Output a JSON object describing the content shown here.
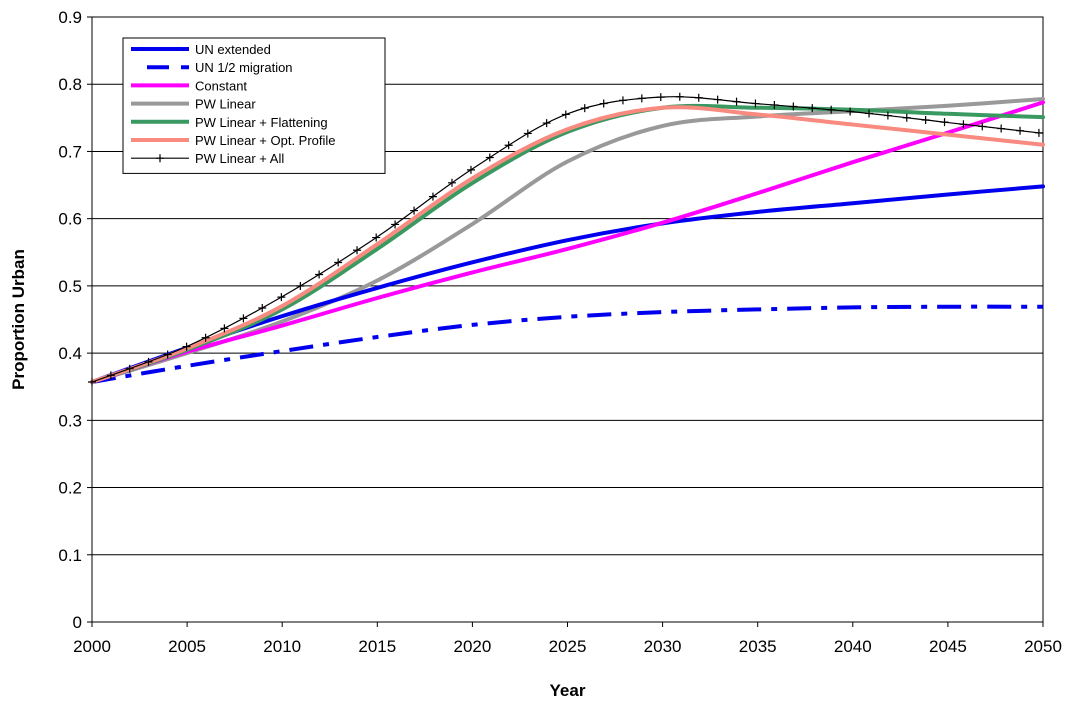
{
  "chart_data": {
    "type": "line",
    "title": "",
    "xlabel": "Year",
    "ylabel": "Proportion Urban",
    "xlim": [
      2000,
      2050
    ],
    "ylim": [
      0,
      0.9
    ],
    "xticks": [
      2000,
      2005,
      2010,
      2015,
      2020,
      2025,
      2030,
      2035,
      2040,
      2045,
      2050
    ],
    "yticks": [
      0,
      0.1,
      0.2,
      0.3,
      0.4,
      0.5,
      0.6,
      0.7,
      0.8,
      0.9
    ],
    "xtick_labels": [
      "2000",
      "2005",
      "2010",
      "2015",
      "2020",
      "2025",
      "2030",
      "2035",
      "2040",
      "2045",
      "2050"
    ],
    "ytick_labels": [
      "0",
      "0.1",
      "0.2",
      "0.3",
      "0.4",
      "0.5",
      "0.6",
      "0.7",
      "0.8",
      "0.9"
    ],
    "grid": "horizontal",
    "legend_position": "top-left",
    "series": [
      {
        "name": "UN extended",
        "color": "#0000ee",
        "dash": "solid",
        "x": [
          2000,
          2005,
          2010,
          2015,
          2020,
          2025,
          2030,
          2035,
          2040,
          2045,
          2050
        ],
        "y": [
          0.357,
          0.408,
          0.455,
          0.497,
          0.535,
          0.568,
          0.593,
          0.61,
          0.623,
          0.636,
          0.648
        ]
      },
      {
        "name": "UN 1/2 migration",
        "color": "#0000ee",
        "dash": "dashdot",
        "x": [
          2000,
          2005,
          2010,
          2015,
          2020,
          2025,
          2030,
          2035,
          2040,
          2045,
          2050
        ],
        "y": [
          0.357,
          0.381,
          0.403,
          0.424,
          0.442,
          0.454,
          0.461,
          0.465,
          0.468,
          0.469,
          0.469
        ]
      },
      {
        "name": "Constant",
        "color": "#ff00ff",
        "dash": "solid",
        "x": [
          2000,
          2005,
          2010,
          2015,
          2020,
          2025,
          2030,
          2035,
          2040,
          2045,
          2050
        ],
        "y": [
          0.357,
          0.402,
          0.441,
          0.482,
          0.52,
          0.555,
          0.594,
          0.638,
          0.684,
          0.728,
          0.773
        ]
      },
      {
        "name": "PW Linear",
        "color": "#999999",
        "dash": "solid",
        "x": [
          2000,
          2005,
          2010,
          2015,
          2020,
          2025,
          2030,
          2035,
          2040,
          2045,
          2050
        ],
        "y": [
          0.357,
          0.4,
          0.447,
          0.508,
          0.592,
          0.685,
          0.738,
          0.752,
          0.76,
          0.768,
          0.778
        ]
      },
      {
        "name": "PW Linear + Flattening",
        "color": "#3a9960",
        "dash": "solid",
        "x": [
          2000,
          2005,
          2010,
          2015,
          2020,
          2025,
          2030,
          2035,
          2040,
          2045,
          2050
        ],
        "y": [
          0.357,
          0.405,
          0.465,
          0.555,
          0.653,
          0.729,
          0.765,
          0.765,
          0.762,
          0.756,
          0.751
        ]
      },
      {
        "name": "PW Linear + Opt. Profile",
        "color": "#f88a80",
        "dash": "solid",
        "x": [
          2000,
          2005,
          2010,
          2015,
          2020,
          2025,
          2030,
          2035,
          2040,
          2045,
          2050
        ],
        "y": [
          0.357,
          0.407,
          0.47,
          0.562,
          0.66,
          0.733,
          0.765,
          0.755,
          0.74,
          0.725,
          0.71
        ]
      },
      {
        "name": "PW Linear + All",
        "color": "#000000",
        "dash": "solid",
        "marker": "plus",
        "x": [
          2000,
          2005,
          2010,
          2015,
          2020,
          2025,
          2030,
          2035,
          2040,
          2045,
          2050
        ],
        "y": [
          0.357,
          0.41,
          0.484,
          0.573,
          0.674,
          0.756,
          0.781,
          0.771,
          0.759,
          0.743,
          0.727
        ]
      }
    ]
  }
}
